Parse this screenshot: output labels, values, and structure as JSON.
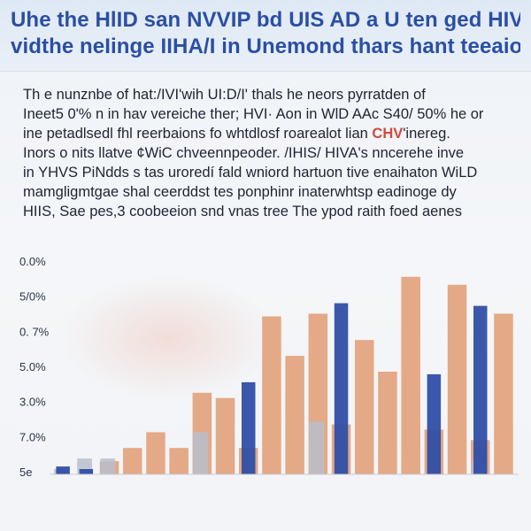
{
  "header": {
    "title_lines": [
      "Uhe the HlID san NVVIP bd UIS AD a U ten ged HIV/her",
      "vidthe neIinge IIHA/I in Unemond thars hant teeaiond"
    ]
  },
  "body_text": {
    "lines": [
      "Th e nunznbe of hat:/IVI'wih UI:D/I' thals he neors pyrratden of",
      "Ineet5 0'% n in hav vereiche ther; HVI· Aon in WlD AAc S40/ 50% he or",
      "ine petadlsedl fhl reerbaions fo whtdlosf roarealot lian",
      "'inereg.",
      "Inors o nits llatve ¢WiC chveennpeoder. /IHIS/ HIVA's nncerehe inve",
      "in YHVS PiNdds s tas uroredí fald wniord hartuon tive enaihaton WiLD",
      "mamgligmtgae shal ceerddst tes ponphinr inaterwhtsp eadinoge dy",
      "HIIS, Sae pes,3 coobeeion snd vnas tree The ypod raith foed aenes"
    ],
    "highlight": "CHV"
  },
  "chart_data": {
    "type": "bar",
    "y_tick_labels": [
      "0.0%",
      "5/0%",
      "0. 7%",
      "5.0%",
      "3.0%",
      "7.0%",
      "5e"
    ],
    "series": [
      {
        "color": "#e3a47f",
        "values": [
          0,
          0,
          0.5,
          1,
          1.6,
          1,
          3.1,
          2.9,
          1,
          6,
          4.5,
          6.1,
          1.9,
          5.1,
          3.9,
          7.5,
          1.7,
          7.2,
          1.3,
          6.1
        ]
      },
      {
        "color": "#2f4ea6",
        "values": [
          0.3,
          0.2,
          0,
          0,
          0,
          0,
          0,
          0,
          3.5,
          0,
          0,
          0,
          6.5,
          0,
          0,
          0,
          3.8,
          0,
          6.4,
          0
        ]
      },
      {
        "color": "#b9bfcb",
        "values": [
          0.2,
          0.6,
          0.6,
          0,
          0,
          0,
          1.6,
          0,
          0,
          0,
          0,
          2,
          0,
          0,
          0,
          0,
          0,
          0,
          0.5,
          0
        ]
      }
    ],
    "ylim": [
      0,
      8.2
    ],
    "grid": false
  }
}
